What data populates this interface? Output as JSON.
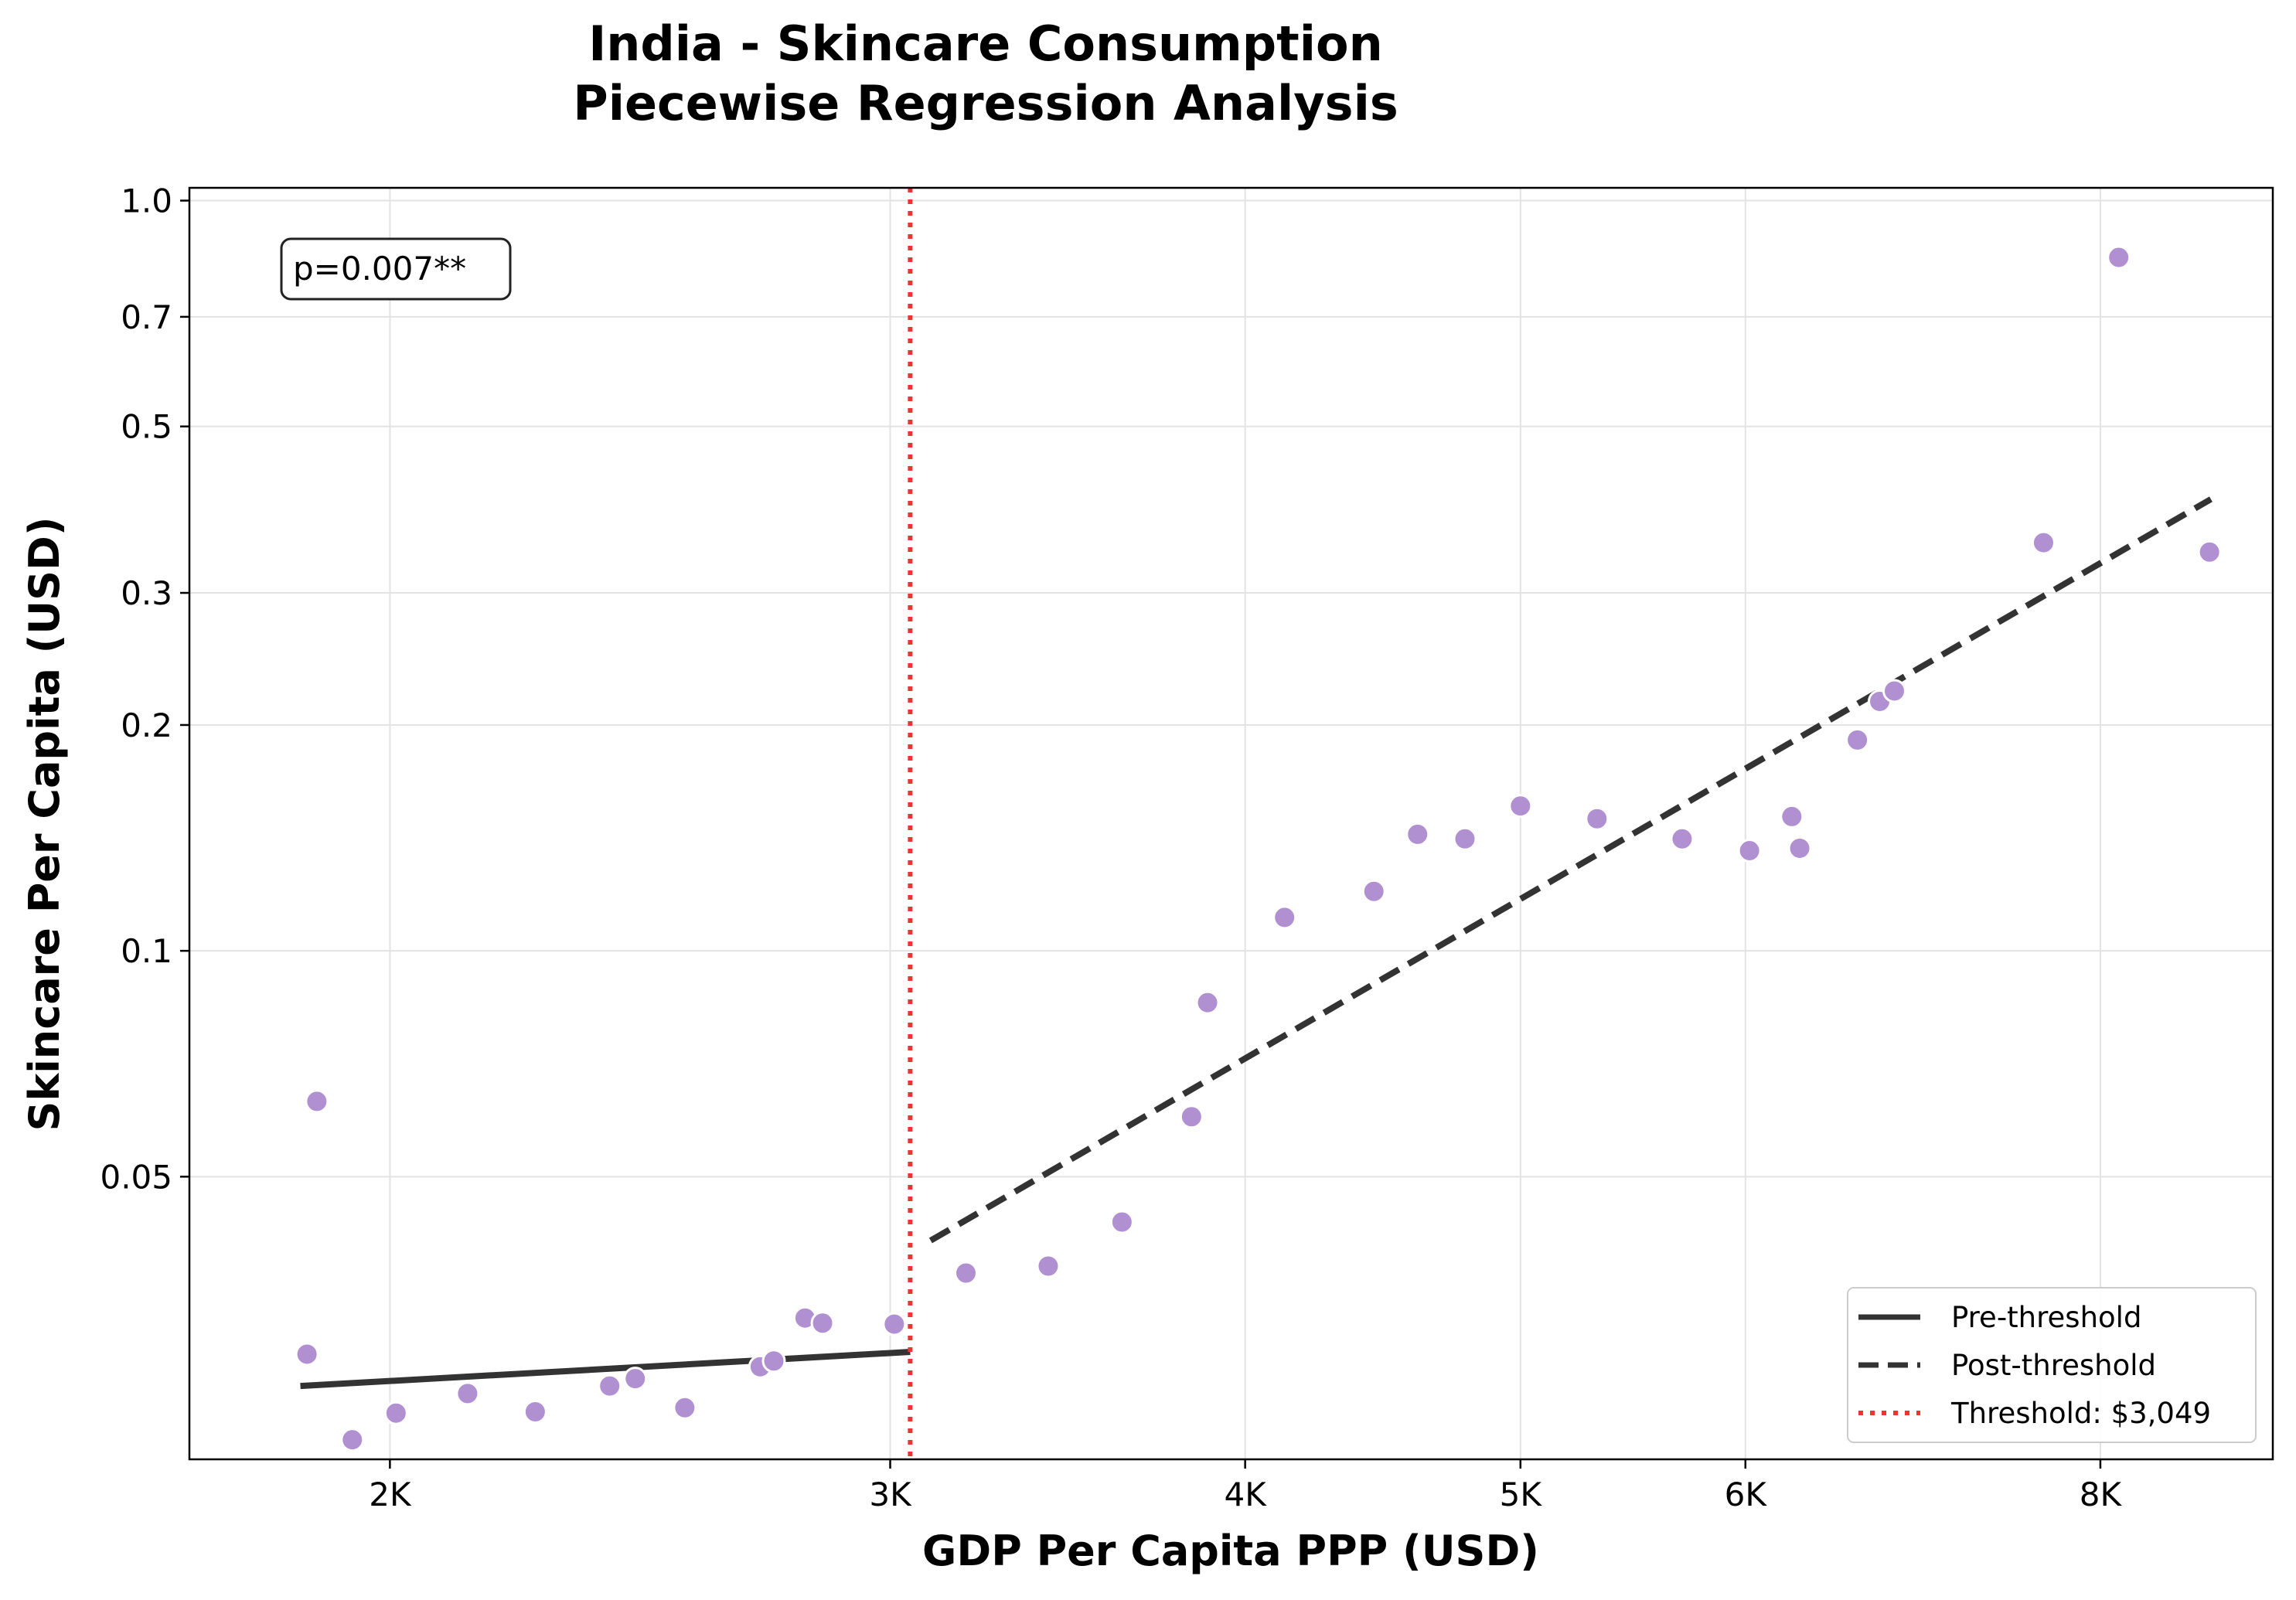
{
  "chart_data": {
    "type": "scatter",
    "title": "India - Skincare Consumption",
    "subtitle": "Piecewise Regression Analysis",
    "xlabel": "GDP Per Capita PPP (USD)",
    "ylabel": "Skincare Per Capita (USD)",
    "x_scale": "log",
    "y_scale": "log",
    "xlim": [
      1700,
      9200
    ],
    "ylim": [
      0.021,
      1.04
    ],
    "x_ticks": [
      2000,
      3000,
      4000,
      5000,
      6000,
      8000
    ],
    "x_tick_labels": [
      "2K",
      "3K",
      "4K",
      "5K",
      "6K",
      "8K"
    ],
    "y_ticks": [
      0.05,
      0.1,
      0.2,
      0.3,
      0.5,
      0.7,
      1.0
    ],
    "y_tick_labels": [
      "0.05",
      "0.1",
      "0.2",
      "0.3",
      "0.5",
      "0.7",
      "1.0"
    ],
    "grid": true,
    "legend_position": "lower-right",
    "annotation": "p=0.007**",
    "point_color": "#b190d2",
    "series": [
      {
        "type": "scatter",
        "x": [
          1870,
          1885,
          1940,
          2010,
          2130,
          2250,
          2390,
          2440,
          2540,
          2700,
          2730,
          2800,
          2840,
          3010,
          3190,
          3410,
          3620,
          3830,
          3880,
          4130,
          4440,
          4600,
          4780,
          5000,
          5320,
          5700,
          6020,
          6230,
          6270,
          6570,
          6690,
          6770,
          7640,
          8120,
          8740
        ],
        "y": [
          0.029,
          0.063,
          0.0223,
          0.0242,
          0.0257,
          0.0243,
          0.0263,
          0.0269,
          0.0246,
          0.0279,
          0.0284,
          0.0324,
          0.0319,
          0.0318,
          0.0372,
          0.038,
          0.0435,
          0.0601,
          0.0853,
          0.1108,
          0.12,
          0.143,
          0.141,
          0.156,
          0.15,
          0.141,
          0.136,
          0.151,
          0.137,
          0.191,
          0.215,
          0.222,
          0.35,
          0.84,
          0.34
        ]
      },
      {
        "type": "line",
        "name": "Pre-threshold",
        "color": "#333333",
        "dash": "solid",
        "x": [
          1860,
          3049
        ],
        "y": [
          0.0263,
          0.0292
        ]
      },
      {
        "type": "line",
        "name": "Post-threshold",
        "color": "#333333",
        "dash": "dashed",
        "x": [
          3100,
          8750
        ],
        "y": [
          0.0411,
          0.4
        ]
      },
      {
        "type": "vline",
        "name": "Threshold: $3,049",
        "color": "#ee3333",
        "dash": "dotted",
        "x": 3049
      }
    ]
  }
}
